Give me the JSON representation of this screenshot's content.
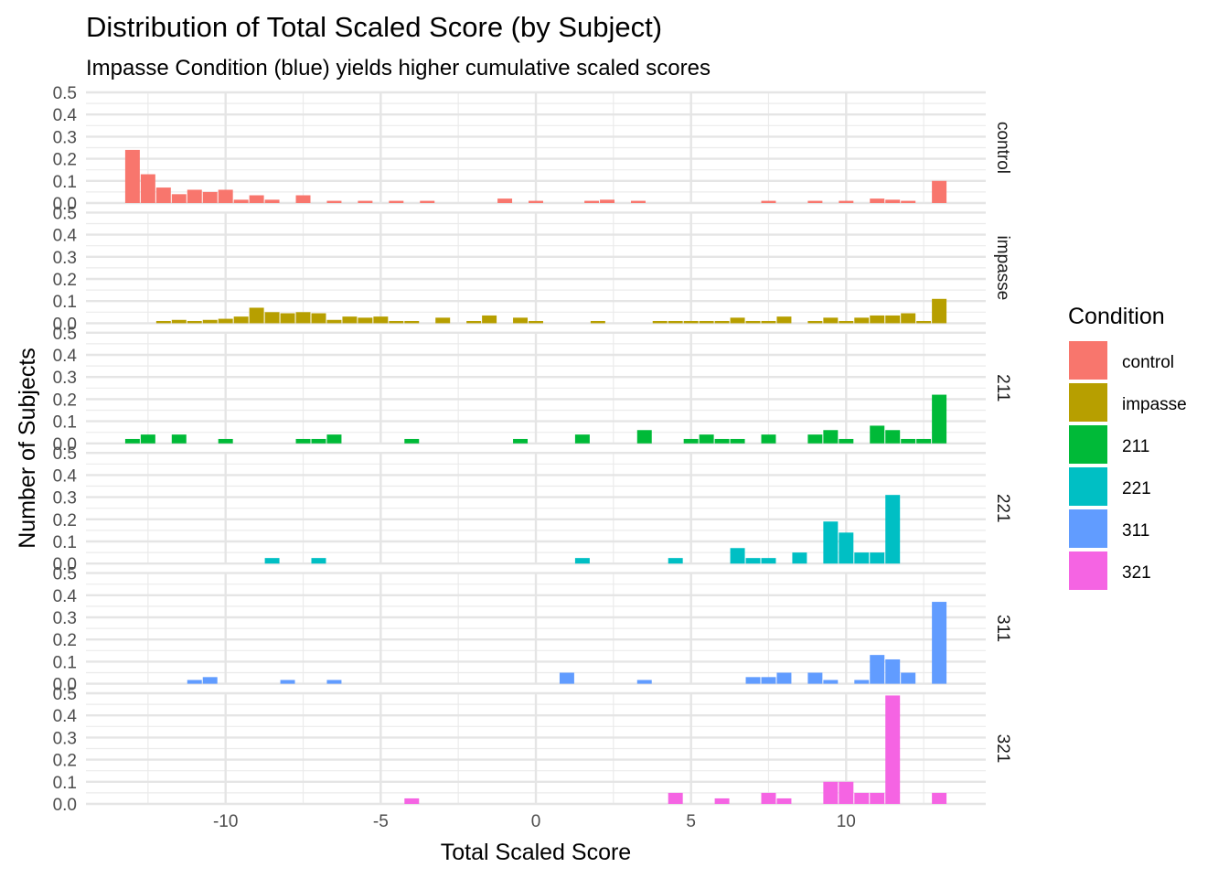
{
  "chart_data": {
    "type": "bar",
    "title": "Distribution of Total Scaled Score (by Subject)",
    "subtitle": "Impasse Condition (blue) yields higher cumulative scaled scores",
    "xlabel": "Total Scaled Score",
    "ylabel": "Number of Subjects",
    "xlim": [
      -14.5,
      14.5
    ],
    "ylim": [
      0,
      0.5
    ],
    "x_ticks": [
      -10,
      -5,
      0,
      5,
      10
    ],
    "x_tick_labels": [
      "-10",
      "-5",
      "0",
      "5",
      "10"
    ],
    "y_ticks": [
      0,
      0.1,
      0.2,
      0.3,
      0.4,
      0.5
    ],
    "y_tick_labels": [
      "0.0",
      "0.1",
      "0.2",
      "0.3",
      "0.4",
      "0.5"
    ],
    "bin_width": 0.5,
    "grid": true,
    "legend_position": "right",
    "legend_title": "Condition",
    "panels": [
      {
        "label": "control",
        "color": "#F8766D",
        "x": [
          -13,
          -12.5,
          -12,
          -11.5,
          -11,
          -10.5,
          -10,
          -9.5,
          -9,
          -8.5,
          -7.5,
          -6.5,
          -5.5,
          -4.5,
          -3.5,
          -1,
          0,
          1.8,
          2.3,
          3.3,
          7.5,
          9,
          10,
          11,
          11.5,
          12,
          13
        ],
        "values": [
          0.24,
          0.13,
          0.07,
          0.04,
          0.06,
          0.05,
          0.06,
          0.015,
          0.035,
          0.015,
          0.035,
          0.01,
          0.01,
          0.01,
          0.01,
          0.02,
          0.01,
          0.01,
          0.015,
          0.01,
          0.01,
          0.01,
          0.01,
          0.02,
          0.015,
          0.01,
          0.1
        ]
      },
      {
        "label": "impasse",
        "color": "#B79F00",
        "x": [
          -12,
          -11.5,
          -11,
          -10.5,
          -10,
          -9.5,
          -9,
          -8.5,
          -8,
          -7.5,
          -7,
          -6.5,
          -6,
          -5.5,
          -5,
          -4.5,
          -4,
          -3,
          -2,
          -1.5,
          -0.5,
          0,
          2,
          4,
          4.5,
          5,
          5.5,
          6,
          6.5,
          7,
          7.5,
          8,
          9,
          9.5,
          10,
          10.5,
          11,
          11.5,
          12,
          12.5,
          13
        ],
        "values": [
          0.01,
          0.015,
          0.01,
          0.015,
          0.02,
          0.03,
          0.07,
          0.05,
          0.045,
          0.05,
          0.045,
          0.015,
          0.03,
          0.025,
          0.03,
          0.01,
          0.01,
          0.025,
          0.01,
          0.035,
          0.025,
          0.01,
          0.01,
          0.01,
          0.01,
          0.01,
          0.01,
          0.01,
          0.025,
          0.01,
          0.01,
          0.03,
          0.01,
          0.025,
          0.01,
          0.025,
          0.035,
          0.035,
          0.045,
          0.01,
          0.11
        ]
      },
      {
        "label": "211",
        "color": "#00BA38",
        "x": [
          -13,
          -12.5,
          -11.5,
          -10,
          -7.5,
          -7,
          -6.5,
          -4,
          -0.5,
          1.5,
          3.5,
          5,
          5.5,
          6,
          6.5,
          7.5,
          9,
          9.5,
          10,
          11,
          11.5,
          12,
          12.5,
          13
        ],
        "values": [
          0.02,
          0.04,
          0.04,
          0.02,
          0.02,
          0.02,
          0.04,
          0.02,
          0.02,
          0.04,
          0.06,
          0.02,
          0.04,
          0.02,
          0.02,
          0.04,
          0.04,
          0.06,
          0.02,
          0.08,
          0.06,
          0.02,
          0.02,
          0.22
        ]
      },
      {
        "label": "221",
        "color": "#00BFC4",
        "x": [
          -8.5,
          -7,
          1.5,
          4.5,
          6.5,
          7,
          7.5,
          8.5,
          9.5,
          10,
          10.5,
          11,
          11.5
        ],
        "values": [
          0.025,
          0.025,
          0.025,
          0.025,
          0.07,
          0.025,
          0.025,
          0.05,
          0.19,
          0.14,
          0.05,
          0.05,
          0.31
        ]
      },
      {
        "label": "311",
        "color": "#619CFF",
        "x": [
          -11,
          -10.5,
          -8,
          -6.5,
          1,
          3.5,
          7,
          7.5,
          8,
          9,
          9.5,
          10.5,
          11,
          11.5,
          12,
          13
        ],
        "values": [
          0.017,
          0.03,
          0.017,
          0.017,
          0.05,
          0.017,
          0.03,
          0.03,
          0.05,
          0.05,
          0.017,
          0.017,
          0.13,
          0.11,
          0.05,
          0.37
        ]
      },
      {
        "label": "321",
        "color": "#F564E3",
        "x": [
          -4,
          4.5,
          6,
          7.5,
          8,
          9.5,
          10,
          10.5,
          11,
          11.5,
          13
        ],
        "values": [
          0.025,
          0.05,
          0.025,
          0.05,
          0.025,
          0.1,
          0.1,
          0.05,
          0.05,
          0.49,
          0.05
        ]
      }
    ]
  }
}
